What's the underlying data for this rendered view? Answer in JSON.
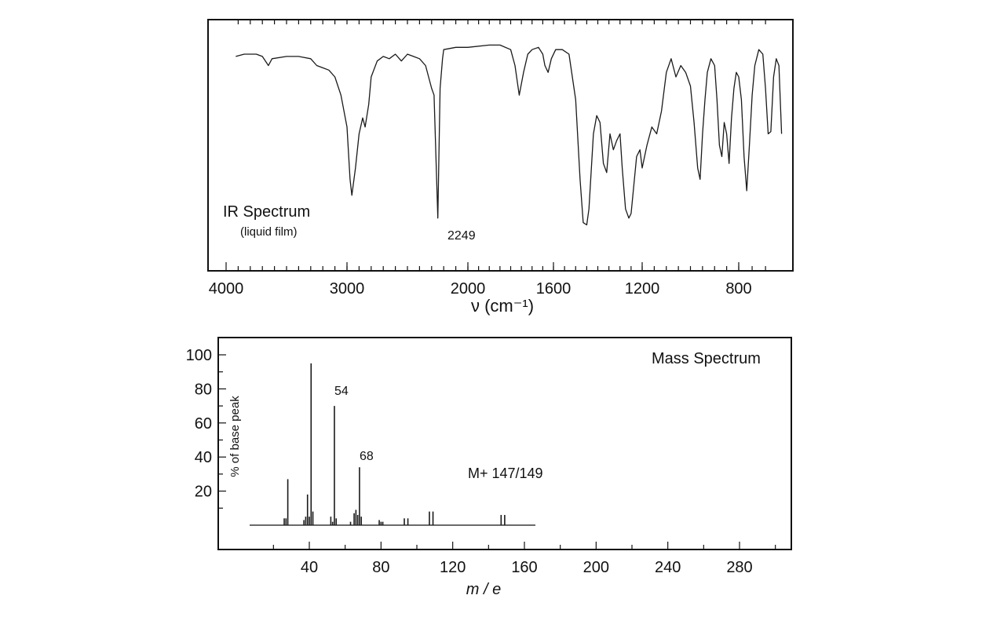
{
  "chart_data": [
    {
      "type": "line",
      "title": "IR Spectrum",
      "subtitle": "(liquid film)",
      "xlabel": "ν (cm⁻¹)",
      "ylabel": "",
      "x_reversed": true,
      "xlim": [
        4000,
        630
      ],
      "ylim": [
        0,
        100
      ],
      "x_ticks": [
        4000,
        3000,
        2000,
        1600,
        1200,
        800
      ],
      "grid": false,
      "annotations": [
        {
          "text": "2249",
          "x": 2249
        }
      ],
      "series": [
        {
          "points": [
            [
              3920,
              89
            ],
            [
              3850,
              90
            ],
            [
              3750,
              90
            ],
            [
              3700,
              89
            ],
            [
              3650,
              85
            ],
            [
              3620,
              88
            ],
            [
              3500,
              89
            ],
            [
              3400,
              89
            ],
            [
              3300,
              88
            ],
            [
              3250,
              85
            ],
            [
              3200,
              84
            ],
            [
              3150,
              83
            ],
            [
              3100,
              80
            ],
            [
              3050,
              72
            ],
            [
              3000,
              58
            ],
            [
              2975,
              35
            ],
            [
              2960,
              28
            ],
            [
              2930,
              40
            ],
            [
              2900,
              55
            ],
            [
              2870,
              62
            ],
            [
              2850,
              58
            ],
            [
              2820,
              68
            ],
            [
              2800,
              80
            ],
            [
              2750,
              87
            ],
            [
              2700,
              89
            ],
            [
              2650,
              88
            ],
            [
              2600,
              90
            ],
            [
              2550,
              87
            ],
            [
              2500,
              90
            ],
            [
              2450,
              89
            ],
            [
              2400,
              88
            ],
            [
              2350,
              85
            ],
            [
              2300,
              75
            ],
            [
              2280,
              72
            ],
            [
              2249,
              18
            ],
            [
              2230,
              75
            ],
            [
              2210,
              88
            ],
            [
              2200,
              92
            ],
            [
              2100,
              93
            ],
            [
              2000,
              93
            ],
            [
              1900,
              94
            ],
            [
              1850,
              94
            ],
            [
              1800,
              92
            ],
            [
              1780,
              85
            ],
            [
              1760,
              72
            ],
            [
              1740,
              82
            ],
            [
              1720,
              90
            ],
            [
              1700,
              92
            ],
            [
              1670,
              93
            ],
            [
              1650,
              90
            ],
            [
              1640,
              85
            ],
            [
              1625,
              82
            ],
            [
              1610,
              88
            ],
            [
              1590,
              92
            ],
            [
              1560,
              92
            ],
            [
              1530,
              90
            ],
            [
              1500,
              70
            ],
            [
              1480,
              35
            ],
            [
              1466,
              16
            ],
            [
              1450,
              15
            ],
            [
              1440,
              22
            ],
            [
              1420,
              55
            ],
            [
              1405,
              63
            ],
            [
              1390,
              60
            ],
            [
              1375,
              42
            ],
            [
              1360,
              38
            ],
            [
              1345,
              55
            ],
            [
              1330,
              48
            ],
            [
              1315,
              52
            ],
            [
              1300,
              55
            ],
            [
              1290,
              40
            ],
            [
              1275,
              22
            ],
            [
              1260,
              18
            ],
            [
              1250,
              20
            ],
            [
              1240,
              30
            ],
            [
              1225,
              45
            ],
            [
              1210,
              48
            ],
            [
              1200,
              40
            ],
            [
              1180,
              50
            ],
            [
              1160,
              58
            ],
            [
              1140,
              55
            ],
            [
              1120,
              65
            ],
            [
              1100,
              82
            ],
            [
              1080,
              88
            ],
            [
              1060,
              80
            ],
            [
              1040,
              85
            ],
            [
              1020,
              82
            ],
            [
              1000,
              76
            ],
            [
              985,
              60
            ],
            [
              970,
              40
            ],
            [
              960,
              35
            ],
            [
              950,
              55
            ],
            [
              940,
              70
            ],
            [
              930,
              82
            ],
            [
              915,
              88
            ],
            [
              900,
              85
            ],
            [
              890,
              70
            ],
            [
              880,
              50
            ],
            [
              870,
              45
            ],
            [
              860,
              60
            ],
            [
              850,
              55
            ],
            [
              840,
              42
            ],
            [
              830,
              62
            ],
            [
              820,
              75
            ],
            [
              810,
              82
            ],
            [
              800,
              80
            ],
            [
              790,
              70
            ],
            [
              780,
              45
            ],
            [
              770,
              30
            ],
            [
              760,
              50
            ],
            [
              750,
              72
            ],
            [
              740,
              85
            ],
            [
              725,
              92
            ],
            [
              710,
              90
            ],
            [
              700,
              75
            ],
            [
              690,
              55
            ],
            [
              680,
              56
            ],
            [
              670,
              80
            ],
            [
              660,
              88
            ],
            [
              650,
              85
            ],
            [
              640,
              55
            ]
          ]
        }
      ]
    },
    {
      "type": "bar",
      "title": "Mass Spectrum",
      "xlabel": "m / e",
      "ylabel": "% of base peak",
      "xlim": [
        0,
        320
      ],
      "ylim": [
        0,
        105
      ],
      "x_ticks": [
        40,
        80,
        120,
        160,
        200,
        240,
        280
      ],
      "y_ticks": [
        20,
        40,
        60,
        80,
        100
      ],
      "grid": false,
      "annotations": [
        {
          "text": "54",
          "x": 54
        },
        {
          "text": "68",
          "x": 68
        },
        {
          "text": "M+ 147/149",
          "x": 147
        }
      ],
      "series": [
        {
          "x": [
            26,
            27,
            28,
            37,
            38,
            39,
            40,
            41,
            42,
            52,
            53,
            54,
            55,
            63,
            65,
            66,
            67,
            68,
            69,
            79,
            80,
            81,
            93,
            95,
            107,
            109,
            147,
            149
          ],
          "values": [
            4,
            4,
            27,
            3,
            5,
            18,
            5,
            95,
            8,
            5,
            2,
            70,
            4,
            2,
            7,
            9,
            6,
            34,
            5,
            3,
            2,
            2,
            4,
            4,
            8,
            8,
            6,
            6
          ]
        }
      ]
    }
  ]
}
